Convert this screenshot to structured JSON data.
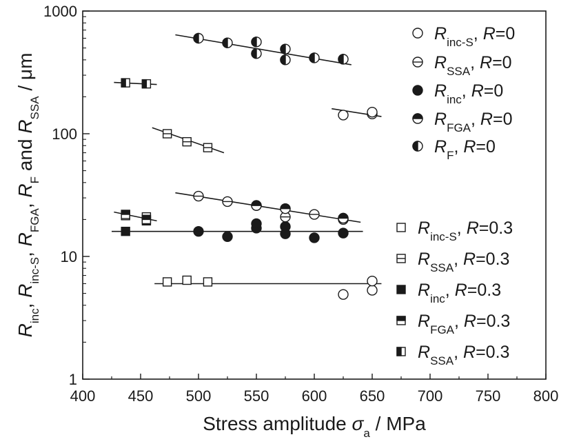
{
  "chart_data": {
    "type": "scatter",
    "xlabel": {
      "main": "Stress amplitude ",
      "sym": "σ",
      "sub": "a",
      "unit": " / MPa"
    },
    "ylabel": [
      {
        "t": "R",
        "i": true
      },
      {
        "t": "inc",
        "s": true
      },
      {
        "t": ", "
      },
      {
        "t": "R",
        "i": true
      },
      {
        "t": "inc-S",
        "s": true
      },
      {
        "t": ", "
      },
      {
        "t": "R",
        "i": true
      },
      {
        "t": "FGA",
        "s": true
      },
      {
        "t": ", "
      },
      {
        "t": "R",
        "i": true
      },
      {
        "t": "F",
        "s": true
      },
      {
        "t": " and "
      },
      {
        "t": "R",
        "i": true
      },
      {
        "t": "SSA",
        "s": true
      },
      {
        "t": " / μm"
      }
    ],
    "xlim": [
      400,
      800
    ],
    "ylim": [
      1,
      1000
    ],
    "yscale": "log",
    "xticks": [
      "400",
      "450",
      "500",
      "550",
      "600",
      "650",
      "700",
      "750",
      "800"
    ],
    "yticks": [
      "1",
      "10",
      "100",
      "1000"
    ],
    "grid": false,
    "legend_placement": "right",
    "series": [
      {
        "marker": "circle-open",
        "legend": {
          "sym": "R",
          "sub": "inc-S",
          "rest": ", ",
          "rsym": "R",
          "rval": "=0"
        },
        "points": [
          [
            625,
            142
          ],
          [
            650,
            145
          ],
          [
            650,
            150
          ],
          [
            625,
            4.9
          ],
          [
            650,
            5.3
          ],
          [
            650,
            6.3
          ]
        ]
      },
      {
        "marker": "circle-hline",
        "legend": {
          "sym": "R",
          "sub": "SSA",
          "rest": ", ",
          "rsym": "R",
          "rval": "=0"
        },
        "points": [
          [
            500,
            31
          ],
          [
            525,
            28
          ],
          [
            550,
            26
          ],
          [
            575,
            21
          ],
          [
            600,
            22
          ],
          [
            625,
            20
          ]
        ]
      },
      {
        "marker": "circle-filled",
        "legend": {
          "sym": "R",
          "sub": "inc",
          "rest": ", ",
          "rsym": "R",
          "rval": "=0"
        },
        "points": [
          [
            500,
            16
          ],
          [
            525,
            14.5
          ],
          [
            550,
            17
          ],
          [
            550,
            18.5
          ],
          [
            575,
            15.3
          ],
          [
            575,
            17.5
          ],
          [
            600,
            14.2
          ],
          [
            625,
            15.5
          ]
        ]
      },
      {
        "marker": "circle-tophalf",
        "legend": {
          "sym": "R",
          "sub": "FGA",
          "rest": ", ",
          "rsym": "R",
          "rval": "=0"
        },
        "points": [
          [
            550,
            26
          ],
          [
            575,
            24.5
          ],
          [
            625,
            20.5
          ]
        ]
      },
      {
        "marker": "circle-lefthalf",
        "legend": {
          "sym": "R",
          "sub": "F",
          "rest": ", ",
          "rsym": "R",
          "rval": "=0"
        },
        "points": [
          [
            500,
            600
          ],
          [
            525,
            550
          ],
          [
            550,
            560
          ],
          [
            550,
            450
          ],
          [
            575,
            490
          ],
          [
            575,
            400
          ],
          [
            600,
            415
          ],
          [
            625,
            405
          ]
        ]
      },
      {
        "marker": "square-open",
        "legend": {
          "sym": "R",
          "sub": "inc-S",
          "rest": ", ",
          "rsym": "R",
          "rval": "=0.3"
        },
        "points": [
          [
            473,
            6.2
          ],
          [
            490,
            6.4
          ],
          [
            508,
            6.2
          ]
        ]
      },
      {
        "marker": "square-hline",
        "legend": {
          "sym": "R",
          "sub": "SSA",
          "rest": ", ",
          "rsym": "R",
          "rval": "=0.3"
        },
        "points": [
          [
            473,
            100
          ],
          [
            490,
            86
          ],
          [
            508,
            77
          ],
          [
            437,
            21.5
          ],
          [
            455,
            21
          ]
        ]
      },
      {
        "marker": "square-filled",
        "legend": {
          "sym": "R",
          "sub": "inc",
          "rest": ", ",
          "rsym": "R",
          "rval": "=0.3"
        },
        "points": [
          [
            437,
            16
          ],
          [
            455,
            19.5
          ]
        ]
      },
      {
        "marker": "square-tophalf",
        "legend": {
          "sym": "R",
          "sub": "FGA",
          "rest": ", ",
          "rsym": "R",
          "rval": "=0.3"
        },
        "points": [
          [
            437,
            22
          ],
          [
            455,
            20
          ]
        ]
      },
      {
        "marker": "square-lefthalf",
        "legend": {
          "sym": "R",
          "sub": "SSA",
          "rest": ", ",
          "rsym": "R",
          "rval": "=0.3"
        },
        "points": [
          [
            437,
            260
          ],
          [
            455,
            255
          ]
        ]
      }
    ],
    "trend_lines": [
      {
        "from": [
          480,
          640
        ],
        "to": [
          632,
          365
        ]
      },
      {
        "from": [
          615,
          160
        ],
        "to": [
          658,
          138
        ]
      },
      {
        "from": [
          480,
          33
        ],
        "to": [
          640,
          19
        ]
      },
      {
        "from": [
          425,
          16
        ],
        "to": [
          642,
          16
        ]
      },
      {
        "from": [
          462,
          6.0
        ],
        "to": [
          658,
          6.0
        ]
      },
      {
        "from": [
          460,
          112
        ],
        "to": [
          522,
          70
        ]
      },
      {
        "from": [
          427,
          23
        ],
        "to": [
          464,
          19.5
        ]
      },
      {
        "from": [
          427,
          262
        ],
        "to": [
          464,
          252
        ]
      }
    ]
  }
}
